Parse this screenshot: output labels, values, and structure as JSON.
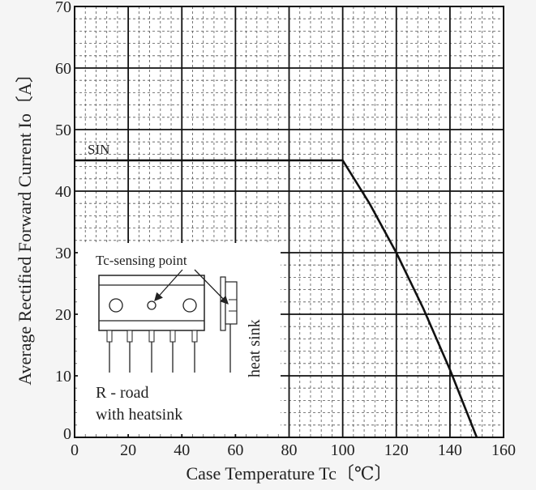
{
  "chart_data": {
    "type": "line",
    "xlabel": "Case Temperature  Tc〔℃〕",
    "ylabel": "Average Rectified Forward Current  Io〔A〕",
    "xlim": [
      0,
      160
    ],
    "ylim": [
      0,
      70
    ],
    "x_ticks": [
      "0",
      "20",
      "40",
      "60",
      "80",
      "100",
      "120",
      "140",
      "160"
    ],
    "y_ticks": [
      "0",
      "10",
      "20",
      "30",
      "40",
      "50",
      "60",
      "70"
    ],
    "grid": "major solid, minor dashed",
    "series": [
      {
        "name": "SIN",
        "x": [
          0,
          100,
          110,
          120,
          130,
          140,
          150
        ],
        "y": [
          45,
          45,
          38,
          30,
          21,
          11,
          0
        ]
      }
    ],
    "inset": {
      "annotation": "Tc-sensing point",
      "heatsink_label": "heat sink",
      "note_line1": "R - road",
      "note_line2": "with heatsink"
    }
  }
}
